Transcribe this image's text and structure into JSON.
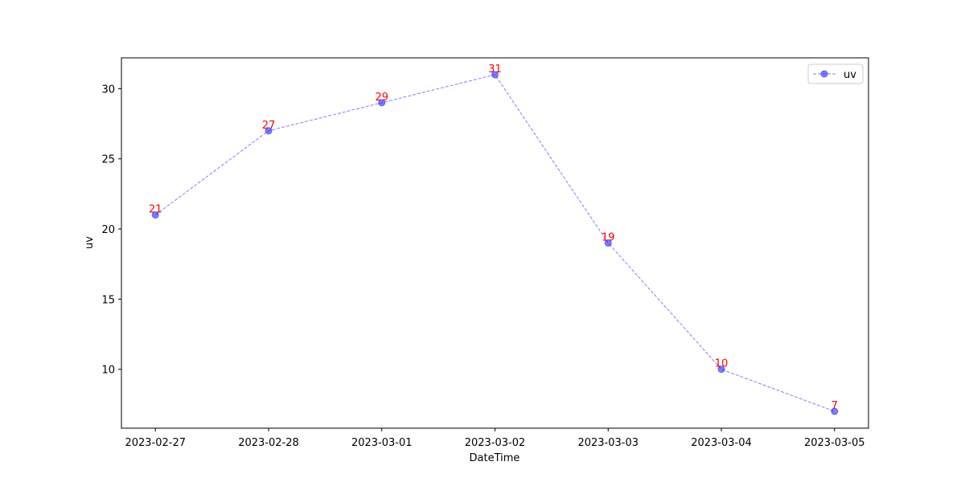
{
  "chart_data": {
    "type": "line",
    "xlabel": "DateTime",
    "ylabel": "uv",
    "categories": [
      "2023-02-27",
      "2023-02-28",
      "2023-03-01",
      "2023-03-02",
      "2023-03-03",
      "2023-03-04",
      "2023-03-05"
    ],
    "series": [
      {
        "name": "uv",
        "color": "#0000ff",
        "values": [
          21,
          27,
          29,
          31,
          19,
          10,
          7
        ]
      }
    ],
    "label_color": "#ff0000",
    "ylim": [
      5.8,
      32.2
    ],
    "yticks": [
      10,
      15,
      20,
      25,
      30
    ],
    "legend": "upper right",
    "grid": false
  }
}
